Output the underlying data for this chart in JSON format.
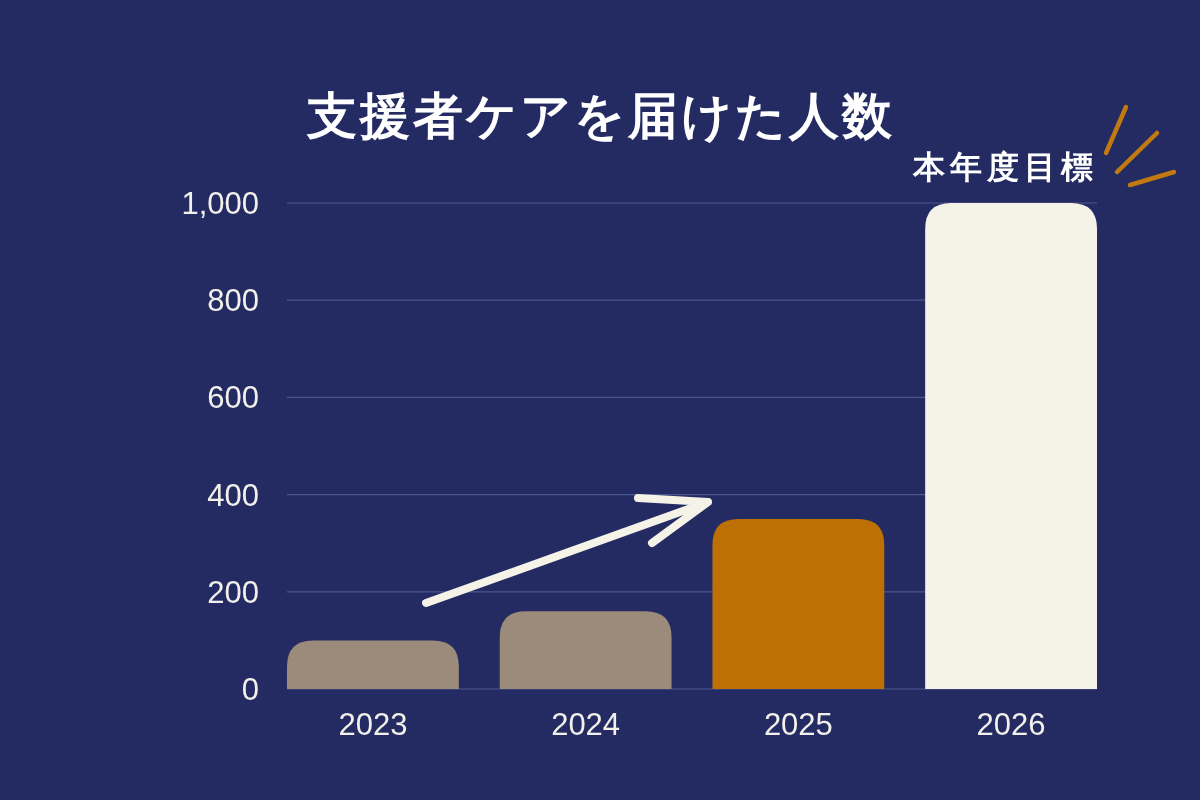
{
  "chart_data": {
    "type": "bar",
    "title": "支援者ケアを届けた人数",
    "categories": [
      "2023",
      "2024",
      "2025",
      "2026"
    ],
    "values": [
      100,
      160,
      350,
      1000
    ],
    "colors": [
      "#9c8b7a",
      "#9c8b7a",
      "#bd7104",
      "#f5f2e8"
    ],
    "ylim": [
      0,
      1000
    ],
    "yticks": [
      0,
      200,
      400,
      600,
      800,
      {
        "value": 1000,
        "label": "1,000"
      }
    ],
    "grid": "y",
    "annotations": [
      {
        "text": "本年度目標",
        "x": "2026",
        "y": 1000
      }
    ]
  }
}
